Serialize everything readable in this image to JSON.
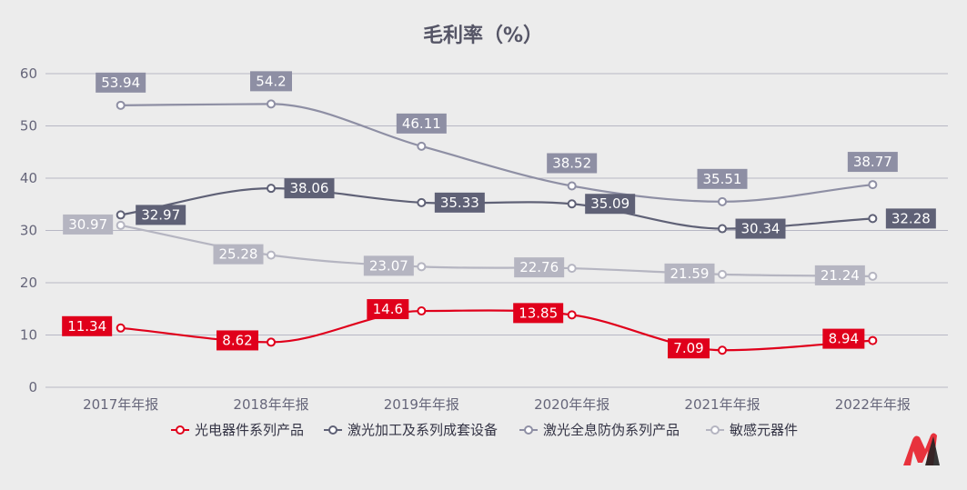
{
  "chart_data": {
    "type": "line",
    "title": "毛利率（%）",
    "categories": [
      "2017年年报",
      "2018年年报",
      "2019年年报",
      "2020年年报",
      "2021年年报",
      "2022年年报"
    ],
    "ylim": [
      0,
      60
    ],
    "yticks": [
      0,
      10,
      20,
      30,
      40,
      50,
      60
    ],
    "grid": true,
    "legend_position": "bottom",
    "smooth": true,
    "series": [
      {
        "name": "光电器件系列产品",
        "color": "#e0001b",
        "values": [
          11.34,
          8.62,
          14.6,
          13.85,
          7.09,
          8.94
        ],
        "labels": [
          "11.34",
          "8.62",
          "14.6",
          "13.85",
          "7.09",
          "8.94"
        ]
      },
      {
        "name": "激光加工及系列成套设备",
        "color": "#5f6176",
        "values": [
          32.97,
          38.06,
          35.33,
          35.09,
          30.34,
          32.28
        ],
        "labels": [
          "32.97",
          "38.06",
          "35.33",
          "35.09",
          "30.34",
          "32.28"
        ]
      },
      {
        "name": "激光全息防伪系列产品",
        "color": "#8e8fa4",
        "values": [
          53.94,
          54.2,
          46.11,
          38.52,
          35.51,
          38.77
        ],
        "labels": [
          "53.94",
          "54.2",
          "46.11",
          "38.52",
          "35.51",
          "38.77"
        ]
      },
      {
        "name": "敏感元器件",
        "color": "#b5b5c1",
        "values": [
          30.97,
          25.28,
          23.07,
          22.76,
          21.59,
          21.24
        ],
        "labels": [
          "30.97",
          "25.28",
          "23.07",
          "22.76",
          "21.59",
          "21.24"
        ]
      }
    ]
  }
}
